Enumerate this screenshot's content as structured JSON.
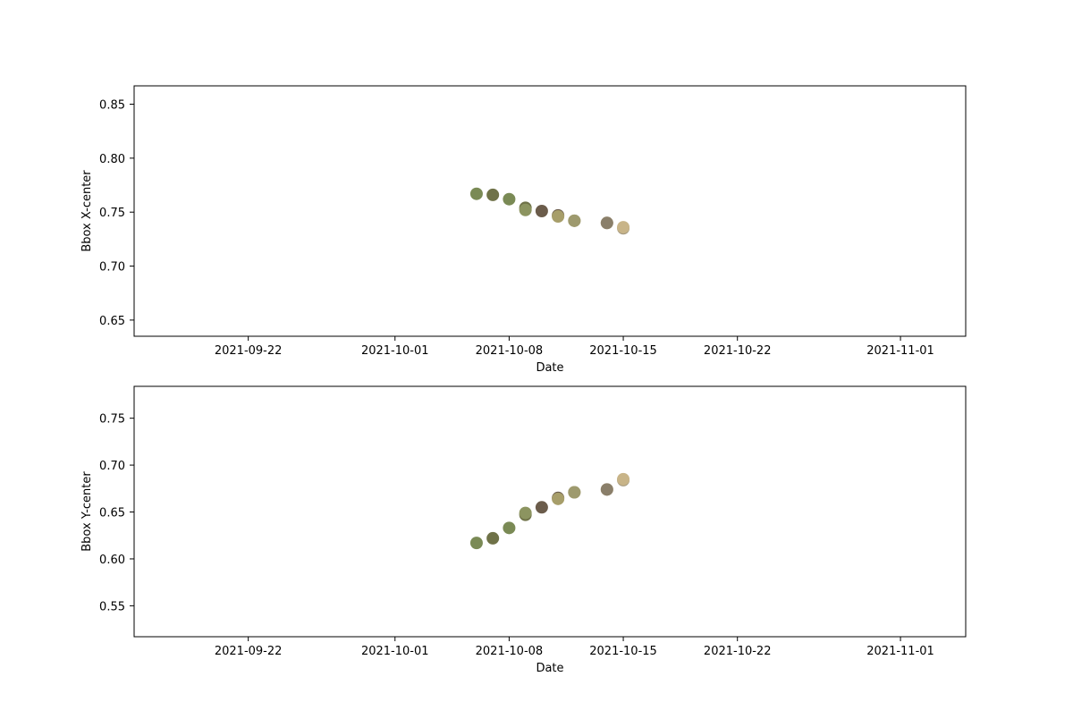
{
  "chart_data": [
    {
      "type": "scatter",
      "xlabel": "Date",
      "ylabel": "Bbox X-center",
      "xlim": [
        "2021-09-15",
        "2021-11-05"
      ],
      "ylim": [
        0.635,
        0.867
      ],
      "x_ticks": [
        "2021-09-22",
        "2021-10-01",
        "2021-10-08",
        "2021-10-15",
        "2021-10-22",
        "2021-11-01"
      ],
      "y_ticks": [
        0.65,
        0.7,
        0.75,
        0.8,
        0.85
      ],
      "y_tick_labels": [
        "0.65",
        "0.70",
        "0.75",
        "0.80",
        "0.85"
      ],
      "grid": false,
      "points": [
        {
          "x": "2021-10-06",
          "y": 0.767,
          "color": "#7a8a55"
        },
        {
          "x": "2021-10-07",
          "y": 0.766,
          "color": "#6f7248"
        },
        {
          "x": "2021-10-08",
          "y": 0.762,
          "color": "#7a8a55"
        },
        {
          "x": "2021-10-09",
          "y": 0.754,
          "color": "#6f7248"
        },
        {
          "x": "2021-10-09",
          "y": 0.752,
          "color": "#8c9460"
        },
        {
          "x": "2021-10-10",
          "y": 0.751,
          "color": "#6b5c4b"
        },
        {
          "x": "2021-10-11",
          "y": 0.747,
          "color": "#6b5c4b"
        },
        {
          "x": "2021-10-11",
          "y": 0.746,
          "color": "#a79e6a"
        },
        {
          "x": "2021-10-12",
          "y": 0.742,
          "color": "#a79e6a"
        },
        {
          "x": "2021-10-12",
          "y": 0.742,
          "color": "#9e9a6e"
        },
        {
          "x": "2021-10-14",
          "y": 0.74,
          "color": "#c0ab7e"
        },
        {
          "x": "2021-10-14",
          "y": 0.74,
          "color": "#8a7f6a"
        },
        {
          "x": "2021-10-15",
          "y": 0.735,
          "color": "#a59a80"
        },
        {
          "x": "2021-10-15",
          "y": 0.736,
          "color": "#c8b488"
        }
      ]
    },
    {
      "type": "scatter",
      "xlabel": "Date",
      "ylabel": "Bbox Y-center",
      "xlim": [
        "2021-09-15",
        "2021-11-05"
      ],
      "ylim": [
        0.517,
        0.784
      ],
      "x_ticks": [
        "2021-09-22",
        "2021-10-01",
        "2021-10-08",
        "2021-10-15",
        "2021-10-22",
        "2021-11-01"
      ],
      "y_ticks": [
        0.55,
        0.6,
        0.65,
        0.7,
        0.75
      ],
      "y_tick_labels": [
        "0.55",
        "0.60",
        "0.65",
        "0.70",
        "0.75"
      ],
      "grid": false,
      "points": [
        {
          "x": "2021-10-06",
          "y": 0.617,
          "color": "#7a8a55"
        },
        {
          "x": "2021-10-07",
          "y": 0.622,
          "color": "#6f7248"
        },
        {
          "x": "2021-10-08",
          "y": 0.633,
          "color": "#7a8a55"
        },
        {
          "x": "2021-10-09",
          "y": 0.647,
          "color": "#6f7248"
        },
        {
          "x": "2021-10-09",
          "y": 0.649,
          "color": "#8c9460"
        },
        {
          "x": "2021-10-10",
          "y": 0.655,
          "color": "#6b5c4b"
        },
        {
          "x": "2021-10-11",
          "y": 0.665,
          "color": "#6b5c4b"
        },
        {
          "x": "2021-10-11",
          "y": 0.664,
          "color": "#a79e6a"
        },
        {
          "x": "2021-10-12",
          "y": 0.671,
          "color": "#a79e6a"
        },
        {
          "x": "2021-10-12",
          "y": 0.671,
          "color": "#9e9a6e"
        },
        {
          "x": "2021-10-14",
          "y": 0.674,
          "color": "#c0ab7e"
        },
        {
          "x": "2021-10-14",
          "y": 0.674,
          "color": "#8a7f6a"
        },
        {
          "x": "2021-10-15",
          "y": 0.684,
          "color": "#a59a80"
        },
        {
          "x": "2021-10-15",
          "y": 0.685,
          "color": "#c8b488"
        }
      ]
    }
  ]
}
